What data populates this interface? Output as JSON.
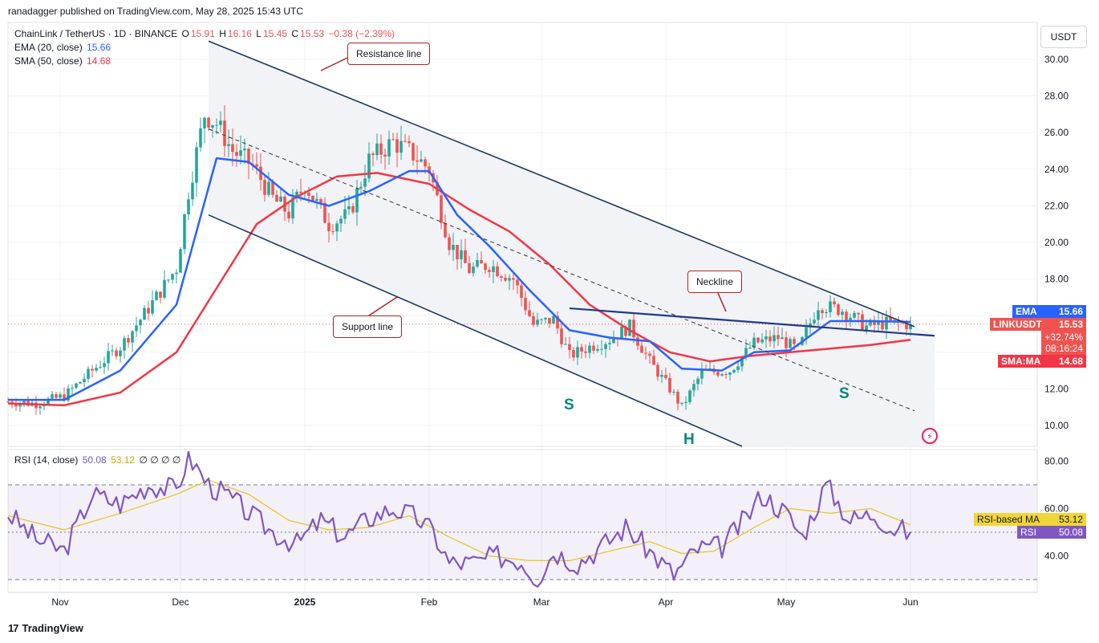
{
  "header": {
    "published": "ranadagger published on TradingView.com, May 28, 2025 15:43 UTC"
  },
  "legend": {
    "symbol": "ChainLink / TetherUS · 1D · BINANCE",
    "o_label": "O",
    "o_value": "15.91",
    "h_label": "H",
    "h_value": "16.16",
    "l_label": "L",
    "l_value": "15.45",
    "c_label": "C",
    "c_value": "15.53",
    "change": "−0.38 (−2.39%)",
    "ema_label": "EMA (20, close)",
    "ema_value": "15.66",
    "sma_label": "SMA (50, close)",
    "sma_value": "14.68",
    "rsi_label": "RSI (14, close)",
    "rsi_value": "50.08",
    "rsi_ma_value": "53.12",
    "rsi_extra": "∅ ∅ ∅ ∅"
  },
  "toolbar": {
    "currency": "USDT"
  },
  "annotations": {
    "resistance": "Resistance line",
    "support": "Support line",
    "neckline": "Neckline",
    "s_left": "S",
    "head": "H",
    "s_right": "S"
  },
  "price_labels": {
    "ema_tag": "EMA",
    "ema_value": "15.66",
    "symbol_tag": "LINKUSDT",
    "last_price": "15.53",
    "change_pct": "+32.74%",
    "countdown": "08:16:24",
    "sma_tag": "SMA:MA",
    "sma_value": "14.68",
    "rsi_ma_tag": "RSI-based MA",
    "rsi_ma_value": "53.12",
    "rsi_tag": "RSI",
    "rsi_value": "50.08"
  },
  "brand": {
    "name": "TradingView"
  },
  "colors": {
    "up": "#26a69a",
    "down": "#ef5350",
    "ema": "#2962ff",
    "sma": "#f23645",
    "rsi": "#7e57c2",
    "rsi_ma": "#f0d63a",
    "trendline": "#1e3a5f",
    "neckline": "#1e3a8a"
  },
  "chart_data": {
    "type": "candlestick",
    "price_axis": {
      "ticks": [
        10,
        12,
        14,
        16,
        18,
        20,
        22,
        24,
        26,
        28,
        30
      ],
      "tick_labels": [
        "10.00",
        "12.00",
        "14.00",
        "16.00",
        "18.00",
        "20.00",
        "22.00",
        "24.00",
        "26.00",
        "28.00",
        "30.00"
      ],
      "range": [
        9.0,
        31.5
      ]
    },
    "time_axis": {
      "labels": [
        "Nov",
        "Dec",
        "2025",
        "Feb",
        "Mar",
        "Apr",
        "May",
        "Jun"
      ],
      "label_days": [
        13,
        43,
        74,
        105,
        133,
        164,
        194,
        225
      ]
    },
    "close_series_weekly": [
      {
        "d": 0,
        "v": 11.3
      },
      {
        "d": 7,
        "v": 11.2
      },
      {
        "d": 14,
        "v": 11.6
      },
      {
        "d": 21,
        "v": 13.0
      },
      {
        "d": 28,
        "v": 14.3
      },
      {
        "d": 35,
        "v": 16.4
      },
      {
        "d": 42,
        "v": 18.6
      },
      {
        "d": 45,
        "v": 22.8
      },
      {
        "d": 49,
        "v": 27.0
      },
      {
        "d": 52,
        "v": 26.5
      },
      {
        "d": 56,
        "v": 25.0
      },
      {
        "d": 61,
        "v": 24.2
      },
      {
        "d": 66,
        "v": 22.4
      },
      {
        "d": 70,
        "v": 21.6
      },
      {
        "d": 74,
        "v": 23.2
      },
      {
        "d": 80,
        "v": 21.0
      },
      {
        "d": 85,
        "v": 21.5
      },
      {
        "d": 90,
        "v": 24.5
      },
      {
        "d": 96,
        "v": 25.5
      },
      {
        "d": 101,
        "v": 24.8
      },
      {
        "d": 105,
        "v": 24.0
      },
      {
        "d": 110,
        "v": 20.0
      },
      {
        "d": 115,
        "v": 18.5
      },
      {
        "d": 120,
        "v": 18.8
      },
      {
        "d": 126,
        "v": 18.0
      },
      {
        "d": 131,
        "v": 15.5
      },
      {
        "d": 136,
        "v": 15.8
      },
      {
        "d": 140,
        "v": 13.8
      },
      {
        "d": 145,
        "v": 14.3
      },
      {
        "d": 150,
        "v": 14.7
      },
      {
        "d": 155,
        "v": 15.4
      },
      {
        "d": 160,
        "v": 13.5
      },
      {
        "d": 165,
        "v": 12.0
      },
      {
        "d": 168,
        "v": 11.0
      },
      {
        "d": 173,
        "v": 12.9
      },
      {
        "d": 180,
        "v": 13.0
      },
      {
        "d": 186,
        "v": 14.5
      },
      {
        "d": 192,
        "v": 14.8
      },
      {
        "d": 197,
        "v": 14.1
      },
      {
        "d": 202,
        "v": 16.6
      },
      {
        "d": 208,
        "v": 16.3
      },
      {
        "d": 214,
        "v": 15.4
      },
      {
        "d": 219,
        "v": 15.6
      },
      {
        "d": 225,
        "v": 15.53
      }
    ],
    "ema20_weekly": [
      {
        "d": 0,
        "v": 11.4
      },
      {
        "d": 14,
        "v": 11.4
      },
      {
        "d": 28,
        "v": 13.0
      },
      {
        "d": 42,
        "v": 16.6
      },
      {
        "d": 52,
        "v": 24.6
      },
      {
        "d": 60,
        "v": 24.4
      },
      {
        "d": 70,
        "v": 22.6
      },
      {
        "d": 80,
        "v": 22.0
      },
      {
        "d": 90,
        "v": 22.8
      },
      {
        "d": 100,
        "v": 23.9
      },
      {
        "d": 105,
        "v": 23.9
      },
      {
        "d": 112,
        "v": 21.5
      },
      {
        "d": 120,
        "v": 19.8
      },
      {
        "d": 130,
        "v": 17.4
      },
      {
        "d": 140,
        "v": 15.2
      },
      {
        "d": 150,
        "v": 14.8
      },
      {
        "d": 160,
        "v": 14.6
      },
      {
        "d": 168,
        "v": 13.1
      },
      {
        "d": 178,
        "v": 13.0
      },
      {
        "d": 186,
        "v": 14.0
      },
      {
        "d": 195,
        "v": 14.1
      },
      {
        "d": 205,
        "v": 15.7
      },
      {
        "d": 215,
        "v": 15.7
      },
      {
        "d": 225,
        "v": 15.66
      }
    ],
    "sma50_weekly": [
      {
        "d": 0,
        "v": 11.2
      },
      {
        "d": 14,
        "v": 11.1
      },
      {
        "d": 28,
        "v": 11.8
      },
      {
        "d": 42,
        "v": 14.0
      },
      {
        "d": 52,
        "v": 17.5
      },
      {
        "d": 62,
        "v": 21.0
      },
      {
        "d": 72,
        "v": 22.5
      },
      {
        "d": 82,
        "v": 23.6
      },
      {
        "d": 92,
        "v": 23.8
      },
      {
        "d": 105,
        "v": 23.2
      },
      {
        "d": 115,
        "v": 21.8
      },
      {
        "d": 125,
        "v": 20.6
      },
      {
        "d": 135,
        "v": 18.8
      },
      {
        "d": 145,
        "v": 16.6
      },
      {
        "d": 155,
        "v": 15.2
      },
      {
        "d": 165,
        "v": 14.0
      },
      {
        "d": 175,
        "v": 13.5
      },
      {
        "d": 185,
        "v": 13.8
      },
      {
        "d": 195,
        "v": 14.0
      },
      {
        "d": 205,
        "v": 14.2
      },
      {
        "d": 215,
        "v": 14.4
      },
      {
        "d": 225,
        "v": 14.68
      }
    ],
    "trendlines": [
      {
        "name": "Resistance line",
        "from": {
          "d": 50,
          "v": 31.0
        },
        "to": {
          "d": 226,
          "v": 15.4
        }
      },
      {
        "name": "Support line",
        "from": {
          "d": 50,
          "v": 21.5
        },
        "to": {
          "d": 183,
          "v": 8.9
        }
      },
      {
        "name": "Mid line",
        "from": {
          "d": 50,
          "v": 26.2
        },
        "to": {
          "d": 226,
          "v": 10.8
        }
      },
      {
        "name": "Neckline",
        "from": {
          "d": 140,
          "v": 16.4
        },
        "to": {
          "d": 231,
          "v": 14.9
        }
      }
    ],
    "rsi": {
      "axis_ticks": [
        40,
        60,
        80
      ],
      "tick_labels": [
        "40.00",
        "60.00",
        "80.00"
      ],
      "range": [
        25,
        85
      ],
      "bands": [
        30,
        70
      ],
      "rsi_weekly": [
        {
          "d": 0,
          "v": 58
        },
        {
          "d": 7,
          "v": 47
        },
        {
          "d": 14,
          "v": 42
        },
        {
          "d": 21,
          "v": 66
        },
        {
          "d": 28,
          "v": 62
        },
        {
          "d": 35,
          "v": 70
        },
        {
          "d": 42,
          "v": 68
        },
        {
          "d": 45,
          "v": 82
        },
        {
          "d": 50,
          "v": 70
        },
        {
          "d": 55,
          "v": 65
        },
        {
          "d": 60,
          "v": 58
        },
        {
          "d": 66,
          "v": 50
        },
        {
          "d": 72,
          "v": 45
        },
        {
          "d": 78,
          "v": 55
        },
        {
          "d": 84,
          "v": 48
        },
        {
          "d": 90,
          "v": 56
        },
        {
          "d": 96,
          "v": 60
        },
        {
          "d": 102,
          "v": 56
        },
        {
          "d": 106,
          "v": 50
        },
        {
          "d": 110,
          "v": 37
        },
        {
          "d": 116,
          "v": 37
        },
        {
          "d": 122,
          "v": 40
        },
        {
          "d": 128,
          "v": 38
        },
        {
          "d": 132,
          "v": 30
        },
        {
          "d": 136,
          "v": 42
        },
        {
          "d": 142,
          "v": 37
        },
        {
          "d": 148,
          "v": 44
        },
        {
          "d": 154,
          "v": 52
        },
        {
          "d": 160,
          "v": 42
        },
        {
          "d": 166,
          "v": 32
        },
        {
          "d": 172,
          "v": 43
        },
        {
          "d": 178,
          "v": 44
        },
        {
          "d": 184,
          "v": 56
        },
        {
          "d": 188,
          "v": 66
        },
        {
          "d": 194,
          "v": 58
        },
        {
          "d": 198,
          "v": 48
        },
        {
          "d": 204,
          "v": 70
        },
        {
          "d": 210,
          "v": 55
        },
        {
          "d": 216,
          "v": 58
        },
        {
          "d": 220,
          "v": 52
        },
        {
          "d": 225,
          "v": 50.08
        }
      ],
      "rsi_ma_weekly": [
        {
          "d": 0,
          "v": 57
        },
        {
          "d": 14,
          "v": 51
        },
        {
          "d": 28,
          "v": 58
        },
        {
          "d": 42,
          "v": 66
        },
        {
          "d": 50,
          "v": 72
        },
        {
          "d": 60,
          "v": 66
        },
        {
          "d": 70,
          "v": 55
        },
        {
          "d": 80,
          "v": 51
        },
        {
          "d": 90,
          "v": 52
        },
        {
          "d": 100,
          "v": 57
        },
        {
          "d": 110,
          "v": 48
        },
        {
          "d": 120,
          "v": 40
        },
        {
          "d": 130,
          "v": 38
        },
        {
          "d": 140,
          "v": 38
        },
        {
          "d": 150,
          "v": 42
        },
        {
          "d": 160,
          "v": 46
        },
        {
          "d": 168,
          "v": 41
        },
        {
          "d": 176,
          "v": 42
        },
        {
          "d": 186,
          "v": 52
        },
        {
          "d": 195,
          "v": 60
        },
        {
          "d": 205,
          "v": 58
        },
        {
          "d": 215,
          "v": 60
        },
        {
          "d": 225,
          "v": 53.12
        }
      ]
    }
  }
}
